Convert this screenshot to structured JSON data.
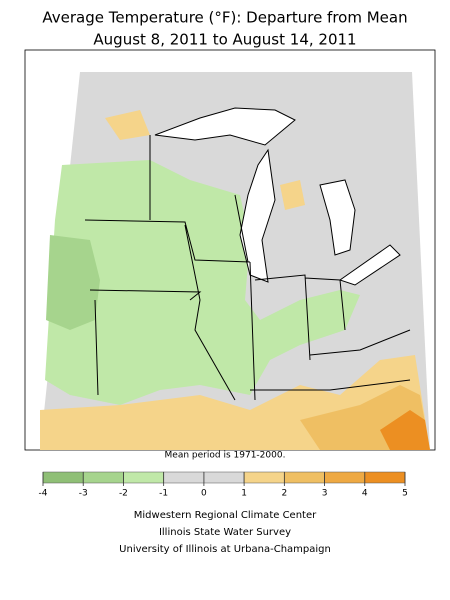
{
  "title": [
    "Average Temperature (°F): Departure from Mean",
    "August 8, 2011 to August 14, 2011"
  ],
  "note": "Mean period is 1971-2000.",
  "legend": {
    "ticks": [
      -4,
      -3,
      -2,
      -1,
      0,
      1,
      2,
      3,
      4,
      5
    ],
    "colors": [
      "#8fbf76",
      "#a6d48d",
      "#c0e8a8",
      "#d9d9d9",
      "#d9d9d9",
      "#f5d48a",
      "#efbf63",
      "#eea943",
      "#ec8f22"
    ]
  },
  "credits": [
    "Midwestern Regional Climate Center",
    "Illinois State Water Survey",
    "University of Illinois at Urbana-Champaign"
  ]
}
